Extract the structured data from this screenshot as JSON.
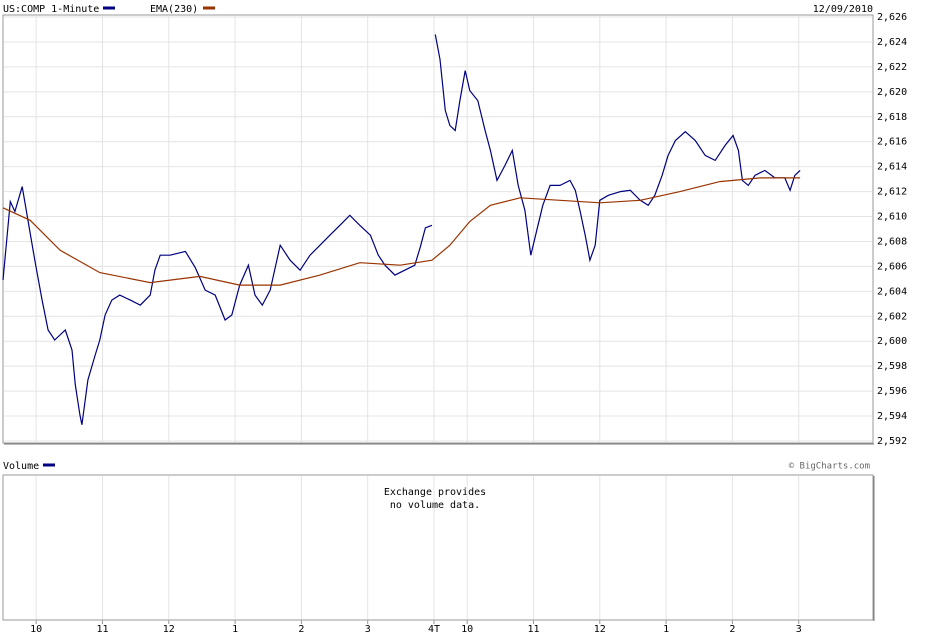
{
  "chart_data": {
    "type": "line",
    "date": "12/09/2010",
    "series": [
      {
        "name": "US:COMP 1-Minute",
        "color": "#000080",
        "x": [
          0,
          0.11,
          0.18,
          0.29,
          0.48,
          0.59,
          0.68,
          0.78,
          0.94,
          1.04,
          1.09,
          1.16,
          1.19,
          1.28,
          1.39,
          1.46,
          1.54,
          1.64,
          1.76,
          1.92,
          2.07,
          2.22,
          2.29,
          2.37,
          2.52,
          2.75,
          2.9,
          3.05,
          3.2,
          3.35,
          3.45,
          3.57,
          3.7,
          3.8,
          3.91,
          4.03,
          4.18,
          4.33,
          4.48,
          4.63,
          4.78,
          4.93,
          5.08,
          5.23,
          5.38,
          5.54,
          5.66,
          5.76,
          5.91,
          6.06,
          6.21,
          6.29,
          6.37,
          6.47,
          null,
          6.52,
          6.59,
          6.67,
          6.74,
          6.82,
          6.89,
          6.97,
          7.04,
          7.16,
          7.27,
          7.35,
          7.45,
          7.57,
          7.68,
          7.77,
          7.87,
          7.96,
          8.05,
          8.14,
          8.25,
          8.4,
          8.55,
          8.63,
          8.7,
          8.78,
          8.85,
          8.93,
          9.0,
          9.13,
          9.31,
          9.46,
          9.61,
          9.73,
          9.83,
          9.94,
          10.03,
          10.14,
          10.29,
          10.44,
          10.59,
          10.74,
          10.89,
          11.01,
          11.09,
          11.15,
          11.24,
          11.34,
          11.49,
          11.64,
          11.79,
          11.87,
          11.94,
          12.02
        ],
        "values": [
          2604.9,
          2611.2,
          2610.4,
          2612.4,
          2606.5,
          2603.3,
          2600.9,
          2600.1,
          2600.9,
          2599.3,
          2596.5,
          2594.1,
          2593.3,
          2596.9,
          2598.9,
          2600.1,
          2602.1,
          2603.3,
          2603.7,
          2603.3,
          2602.9,
          2603.7,
          2605.7,
          2606.9,
          2606.9,
          2607.2,
          2605.9,
          2604.1,
          2603.7,
          2601.7,
          2602.1,
          2604.5,
          2606.1,
          2603.7,
          2602.9,
          2604.1,
          2607.7,
          2606.5,
          2605.7,
          2606.9,
          2607.7,
          2608.5,
          2609.3,
          2610.1,
          2609.3,
          2608.5,
          2606.9,
          2606.1,
          2605.3,
          2605.7,
          2606.1,
          2607.5,
          2609.1,
          2609.3,
          null,
          2624.6,
          2622.6,
          2618.5,
          2617.3,
          2616.9,
          2619.3,
          2621.7,
          2620.1,
          2619.3,
          2616.9,
          2615.3,
          2612.9,
          2614.1,
          2615.3,
          2612.5,
          2610.5,
          2606.9,
          2608.9,
          2610.9,
          2612.5,
          2612.5,
          2612.9,
          2612.1,
          2610.5,
          2608.5,
          2606.5,
          2607.7,
          2611.3,
          2611.7,
          2612.0,
          2612.1,
          2611.3,
          2610.9,
          2611.7,
          2613.3,
          2614.9,
          2616.1,
          2616.8,
          2616.1,
          2614.9,
          2614.5,
          2615.7,
          2616.5,
          2615.3,
          2612.9,
          2612.5,
          2613.3,
          2613.7,
          2613.1,
          2613.1,
          2612.1,
          2613.3,
          2613.7
        ]
      },
      {
        "name": "EMA(230)",
        "color": "#993300",
        "x": [
          0,
          0.41,
          0.86,
          1.46,
          2.22,
          2.97,
          3.57,
          4.18,
          4.78,
          5.38,
          5.99,
          6.47,
          6.74,
          7.04,
          7.35,
          7.8,
          8.4,
          9.0,
          9.61,
          10.21,
          10.81,
          11.42,
          12.02
        ],
        "values": [
          2610.7,
          2609.7,
          2607.3,
          2605.5,
          2604.7,
          2605.2,
          2604.5,
          2604.5,
          2605.3,
          2606.3,
          2606.1,
          2606.5,
          2607.7,
          2609.6,
          2610.9,
          2611.5,
          2611.3,
          2611.1,
          2611.3,
          2612.0,
          2612.8,
          2613.1,
          2613.1
        ]
      }
    ],
    "xlim": [
      0,
      13.12
    ],
    "xticks": [
      {
        "value": 0.5,
        "label": "10"
      },
      {
        "value": 1.5,
        "label": "11"
      },
      {
        "value": 2.5,
        "label": "12"
      },
      {
        "value": 3.5,
        "label": "1"
      },
      {
        "value": 4.5,
        "label": "2"
      },
      {
        "value": 5.5,
        "label": "3"
      },
      {
        "value": 6.5,
        "label": "4T"
      },
      {
        "value": 7.0,
        "label": "10"
      },
      {
        "value": 8.0,
        "label": "11"
      },
      {
        "value": 9.0,
        "label": "12"
      },
      {
        "value": 10.0,
        "label": "1"
      },
      {
        "value": 11.0,
        "label": "2"
      },
      {
        "value": 12.0,
        "label": "3"
      }
    ],
    "ylim": [
      2592,
      2626
    ],
    "yticks": [
      {
        "value": 2592,
        "label": "2,592"
      },
      {
        "value": 2594,
        "label": "2,594"
      },
      {
        "value": 2596,
        "label": "2,596"
      },
      {
        "value": 2598,
        "label": "2,598"
      },
      {
        "value": 2600,
        "label": "2,600"
      },
      {
        "value": 2602,
        "label": "2,602"
      },
      {
        "value": 2604,
        "label": "2,604"
      },
      {
        "value": 2606,
        "label": "2,606"
      },
      {
        "value": 2608,
        "label": "2,608"
      },
      {
        "value": 2610,
        "label": "2,610"
      },
      {
        "value": 2612,
        "label": "2,612"
      },
      {
        "value": 2614,
        "label": "2,614"
      },
      {
        "value": 2616,
        "label": "2,616"
      },
      {
        "value": 2618,
        "label": "2,618"
      },
      {
        "value": 2620,
        "label": "2,620"
      },
      {
        "value": 2622,
        "label": "2,622"
      },
      {
        "value": 2624,
        "label": "2,624"
      },
      {
        "value": 2626,
        "label": "2,626"
      }
    ],
    "grid": true,
    "volume_panel": {
      "label": "Volume",
      "color": "#000080",
      "message": [
        "Exchange provides",
        "no volume data."
      ]
    },
    "credit": "© BigCharts.com"
  }
}
